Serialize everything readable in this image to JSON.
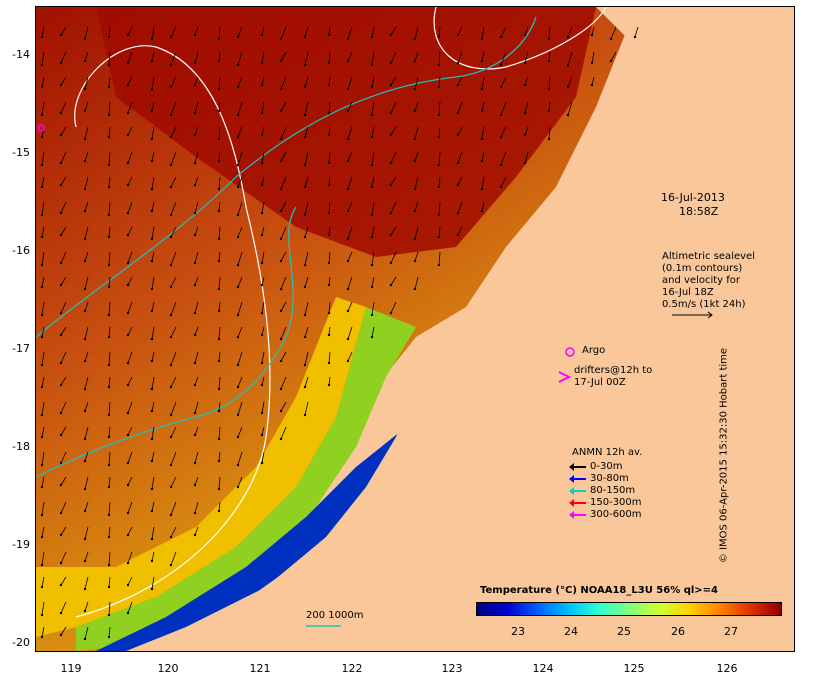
{
  "date_line1": "16-Jul-2013",
  "date_line2": "18:58Z",
  "altimetry_lines": [
    "Altimetric sealevel",
    "(0.1m contours)",
    "and velocity for",
    "16-Jul 18Z",
    "0.5m/s (1kt 24h)"
  ],
  "argo_label": "Argo",
  "drifters_lines": [
    "drifters@12h to",
    "17-Jul 00Z"
  ],
  "legend": {
    "title": "ANMN 12h av.",
    "items": [
      {
        "label": "0-30m",
        "color": "#000000"
      },
      {
        "label": "30-80m",
        "color": "#0000ff"
      },
      {
        "label": "80-150m",
        "color": "#00d0d0"
      },
      {
        "label": "150-300m",
        "color": "#ff0000"
      },
      {
        "label": "300-600m",
        "color": "#ff00ff"
      }
    ]
  },
  "depth_contour_label": "200  1000m",
  "colorbar": {
    "title": "Temperature (°C) NOAA18_L3U 56% ql>=4",
    "ticks": [
      "23",
      "24",
      "25",
      "26",
      "27"
    ]
  },
  "credit": "© IMOS 06-Apr-2015 15:32:30 Hobart time",
  "axes": {
    "y_ticks": [
      "-14",
      "-15",
      "-16",
      "-17",
      "-18",
      "-19",
      "-20"
    ],
    "x_ticks": [
      "119",
      "120",
      "121",
      "122",
      "123",
      "124",
      "125",
      "126"
    ]
  },
  "colors": {
    "land": "#f9c79a",
    "warm_water": "#b02000",
    "isobath_200": "#20c0c0",
    "isobath_1000": "#ffffff",
    "argo": "#ff00ff"
  }
}
